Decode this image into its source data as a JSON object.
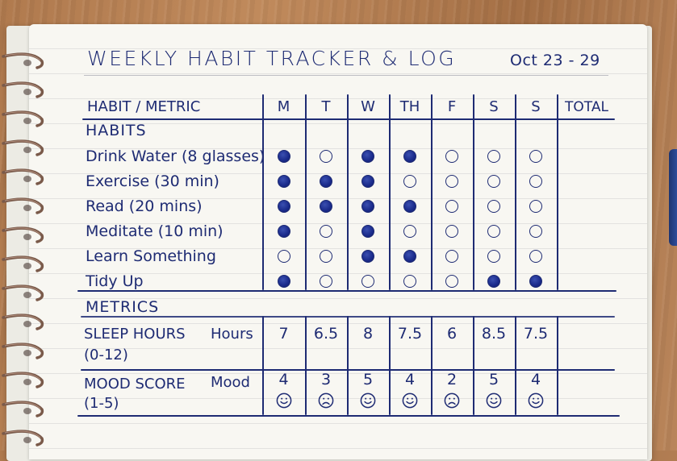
{
  "tracker": {
    "title": "WEEKLY HABIT TRACKER & LOG",
    "date_range": "Oct 23 - 29",
    "header": {
      "first_col": "HABIT / METRIC",
      "days": [
        "M",
        "T",
        "W",
        "TH",
        "F",
        "S",
        "S"
      ],
      "total": "TOTAL"
    },
    "habits_section": "HABITS",
    "habits": [
      {
        "label": "Drink Water (8 glasses)",
        "done": [
          true,
          false,
          true,
          true,
          false,
          false,
          false
        ],
        "total": ""
      },
      {
        "label": "Exercise (30 min)",
        "done": [
          true,
          true,
          true,
          false,
          false,
          false,
          false
        ],
        "total": ""
      },
      {
        "label": "Read (20 mins)",
        "done": [
          true,
          true,
          true,
          true,
          false,
          false,
          false
        ],
        "total": ""
      },
      {
        "label": "Meditate (10 min)",
        "done": [
          true,
          false,
          true,
          false,
          false,
          false,
          false
        ],
        "total": ""
      },
      {
        "label": "Learn Something",
        "done": [
          false,
          false,
          true,
          true,
          false,
          false,
          false
        ],
        "total": ""
      },
      {
        "label": "Tidy Up",
        "done": [
          true,
          false,
          false,
          false,
          false,
          true,
          true
        ],
        "total": ""
      }
    ],
    "metrics_section": "METRICS",
    "metrics": [
      {
        "label": "SLEEP HOURS",
        "unit": "Hours",
        "range": "(0-12)",
        "values": [
          "7",
          "6.5",
          "8",
          "7.5",
          "6",
          "8.5",
          "7.5"
        ],
        "total": ""
      },
      {
        "label": "MOOD SCORE",
        "unit": "Mood",
        "range": "(1-5)",
        "values": [
          "4",
          "3",
          "5",
          "4",
          "2",
          "5",
          "4"
        ],
        "faces": [
          "smile",
          "frown",
          "smile",
          "smile",
          "frown",
          "smile",
          "smile"
        ],
        "total": ""
      }
    ]
  },
  "colors": {
    "ink": "#1e2b73",
    "paper": "#f8f7f2",
    "wood": "#b07a4e",
    "spiral": "#7a5a4a"
  }
}
